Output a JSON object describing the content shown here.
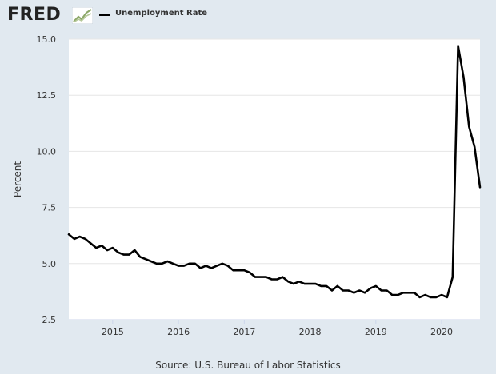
{
  "header": {
    "logo_text": "FRED",
    "logo_icon": "line-chart-icon"
  },
  "source": "Source: U.S. Bureau of Labor Statistics",
  "colors": {
    "background": "#e1e9f0",
    "plot_background": "#ffffff",
    "line": "#000000",
    "grid": "#e6e6e6"
  },
  "chart_data": {
    "type": "line",
    "title": "",
    "xlabel": "",
    "ylabel": "Percent",
    "legend": "top-left",
    "grid": true,
    "ylim": [
      2.5,
      15.0
    ],
    "xlim": [
      2014.333,
      2020.583
    ],
    "yticks": [
      "2.5",
      "5.0",
      "7.5",
      "10.0",
      "12.5",
      "15.0"
    ],
    "xticks": [
      "2015",
      "2016",
      "2017",
      "2018",
      "2019",
      "2020"
    ],
    "series": [
      {
        "name": "Unemployment Rate",
        "x": [
          "2014-05",
          "2014-06",
          "2014-07",
          "2014-08",
          "2014-09",
          "2014-10",
          "2014-11",
          "2014-12",
          "2015-01",
          "2015-02",
          "2015-03",
          "2015-04",
          "2015-05",
          "2015-06",
          "2015-07",
          "2015-08",
          "2015-09",
          "2015-10",
          "2015-11",
          "2015-12",
          "2016-01",
          "2016-02",
          "2016-03",
          "2016-04",
          "2016-05",
          "2016-06",
          "2016-07",
          "2016-08",
          "2016-09",
          "2016-10",
          "2016-11",
          "2016-12",
          "2017-01",
          "2017-02",
          "2017-03",
          "2017-04",
          "2017-05",
          "2017-06",
          "2017-07",
          "2017-08",
          "2017-09",
          "2017-10",
          "2017-11",
          "2017-12",
          "2018-01",
          "2018-02",
          "2018-03",
          "2018-04",
          "2018-05",
          "2018-06",
          "2018-07",
          "2018-08",
          "2018-09",
          "2018-10",
          "2018-11",
          "2018-12",
          "2019-01",
          "2019-02",
          "2019-03",
          "2019-04",
          "2019-05",
          "2019-06",
          "2019-07",
          "2019-08",
          "2019-09",
          "2019-10",
          "2019-11",
          "2019-12",
          "2020-01",
          "2020-02",
          "2020-03",
          "2020-04",
          "2020-05",
          "2020-06",
          "2020-07",
          "2020-08"
        ],
        "values": [
          6.3,
          6.1,
          6.2,
          6.1,
          5.9,
          5.7,
          5.8,
          5.6,
          5.7,
          5.5,
          5.4,
          5.4,
          5.6,
          5.3,
          5.2,
          5.1,
          5.0,
          5.0,
          5.1,
          5.0,
          4.9,
          4.9,
          5.0,
          5.0,
          4.8,
          4.9,
          4.8,
          4.9,
          5.0,
          4.9,
          4.7,
          4.7,
          4.7,
          4.6,
          4.4,
          4.4,
          4.4,
          4.3,
          4.3,
          4.4,
          4.2,
          4.1,
          4.2,
          4.1,
          4.1,
          4.1,
          4.0,
          4.0,
          3.8,
          4.0,
          3.8,
          3.8,
          3.7,
          3.8,
          3.7,
          3.9,
          4.0,
          3.8,
          3.8,
          3.6,
          3.6,
          3.7,
          3.7,
          3.7,
          3.5,
          3.6,
          3.5,
          3.5,
          3.6,
          3.5,
          4.4,
          14.7,
          13.3,
          11.1,
          10.2,
          8.4
        ]
      }
    ]
  }
}
